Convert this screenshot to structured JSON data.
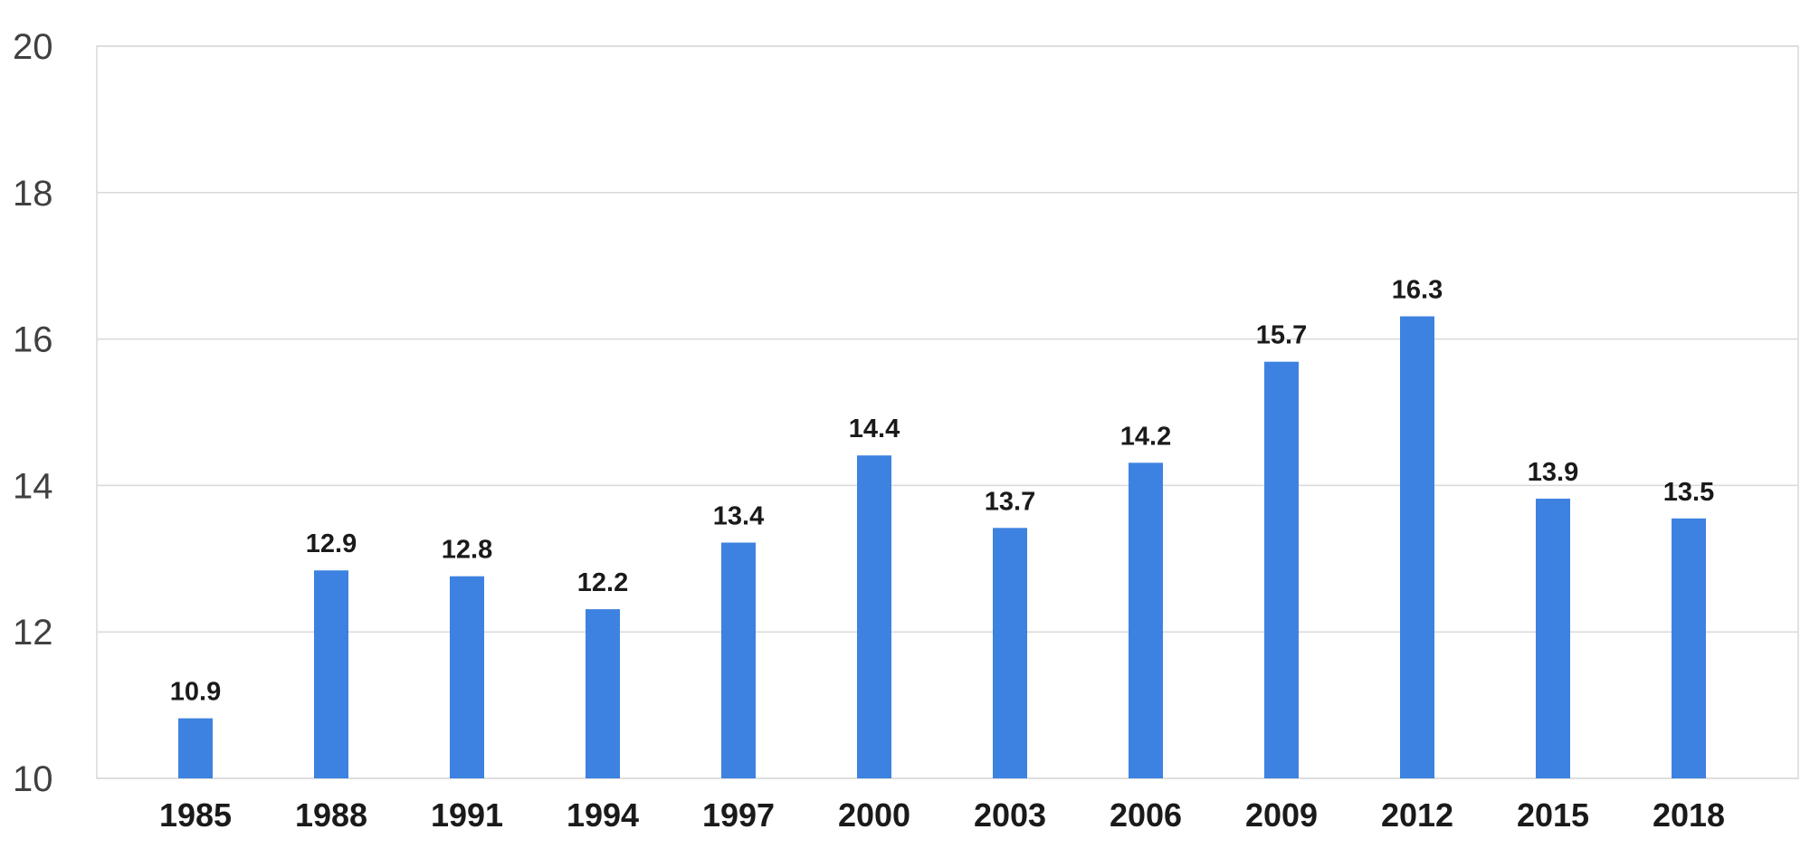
{
  "chart_data": {
    "type": "bar",
    "categories": [
      "1985",
      "1988",
      "1991",
      "1994",
      "1997",
      "2000",
      "2003",
      "2006",
      "2009",
      "2012",
      "2015",
      "2018"
    ],
    "values": [
      10.9,
      12.9,
      12.8,
      12.2,
      13.4,
      14.4,
      13.7,
      14.2,
      15.7,
      16.3,
      13.9,
      13.5
    ],
    "bar_heights": [
      10.82,
      12.84,
      12.76,
      12.31,
      13.22,
      14.41,
      13.42,
      14.31,
      15.69,
      16.31,
      13.82,
      13.55
    ],
    "data_labels": [
      "10.9",
      "12.9",
      "12.8",
      "12.2",
      "13.4",
      "14.4",
      "13.7",
      "14.2",
      "15.7",
      "16.3",
      "13.9",
      "13.5"
    ],
    "y_ticks": [
      "10",
      "12",
      "14",
      "16",
      "18",
      "20"
    ],
    "ylim": [
      10,
      20
    ],
    "grid": true,
    "bar_color": "#3d82e0",
    "title": "",
    "xlabel": "",
    "ylabel": ""
  }
}
